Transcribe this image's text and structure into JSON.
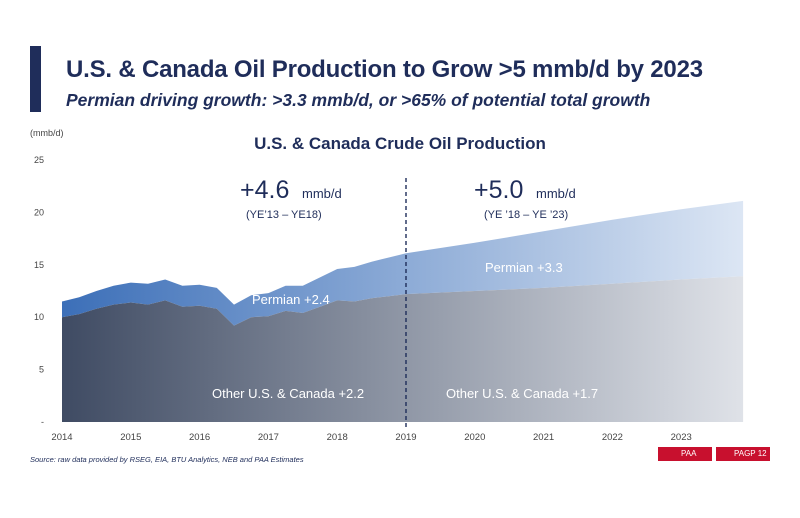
{
  "header": {
    "title": "U.S. & Canada Oil Production to Grow >5 mmb/d by 2023",
    "subtitle": "Permian driving growth: >3.3 mmb/d, or >65% of potential total growth"
  },
  "chart_data": {
    "type": "area",
    "title": "U.S. & Canada Crude Oil Production",
    "ylabel": "(mmb/d)",
    "ylim": [
      0,
      25
    ],
    "xlim": [
      2014,
      2024
    ],
    "yticks": [
      "-",
      "5",
      "10",
      "15",
      "20",
      "25"
    ],
    "ytick_values": [
      0,
      5,
      10,
      15,
      20,
      25
    ],
    "xticks": [
      "2014",
      "2015",
      "2016",
      "2017",
      "2018",
      "2019",
      "2020",
      "2021",
      "2022",
      "2023"
    ],
    "divider_x": 2019,
    "series": [
      {
        "name": "Other U.S. & Canada",
        "x": [
          2014.0,
          2014.25,
          2014.5,
          2014.75,
          2015.0,
          2015.25,
          2015.5,
          2015.75,
          2016.0,
          2016.25,
          2016.5,
          2016.75,
          2017.0,
          2017.25,
          2017.5,
          2017.75,
          2018.0,
          2018.25,
          2018.5,
          2018.75,
          2019.0,
          2020.0,
          2021.0,
          2022.0,
          2023.0,
          2023.9
        ],
        "values": [
          10.0,
          10.3,
          10.8,
          11.2,
          11.4,
          11.2,
          11.6,
          11.0,
          11.1,
          10.8,
          9.2,
          10.0,
          10.1,
          10.6,
          10.4,
          11.0,
          11.6,
          11.5,
          11.8,
          12.0,
          12.2,
          12.5,
          12.8,
          13.2,
          13.6,
          13.9
        ]
      },
      {
        "name": "Permian",
        "x": [
          2014.0,
          2014.25,
          2014.5,
          2014.75,
          2015.0,
          2015.25,
          2015.5,
          2015.75,
          2016.0,
          2016.25,
          2016.5,
          2016.75,
          2017.0,
          2017.25,
          2017.5,
          2017.75,
          2018.0,
          2018.25,
          2018.5,
          2018.75,
          2019.0,
          2020.0,
          2021.0,
          2022.0,
          2023.0,
          2023.9
        ],
        "values": [
          1.5,
          1.6,
          1.7,
          1.8,
          1.9,
          2.0,
          2.0,
          2.0,
          2.0,
          2.0,
          2.0,
          2.1,
          2.2,
          2.4,
          2.6,
          2.8,
          3.0,
          3.3,
          3.5,
          3.7,
          3.9,
          4.6,
          5.4,
          6.1,
          6.7,
          7.2
        ]
      }
    ],
    "annotations": {
      "growth_left": "+4.6",
      "unit_left": "mmb/d",
      "period_left": "(YE’13 – YE18)",
      "growth_right": "+5.0",
      "unit_right": "mmb/d",
      "period_right": "(YE ’18 – YE ’23)",
      "permian_left": "Permian +2.4",
      "permian_right": "Permian +3.3",
      "other_left": "Other U.S. & Canada +2.2",
      "other_right": "Other U.S. & Canada +1.7"
    },
    "colors": {
      "other_dark": "#3f4b63",
      "other_light": "#dfe2e8",
      "permian_dark": "#3c6fb8",
      "permian_light": "#dce6f4"
    }
  },
  "footer": {
    "source": "Source: raw data provided by RSEG, EIA, BTU Analytics, NEB and PAA Estimates",
    "left_label": "PAA",
    "right_label": "PAGP 12"
  }
}
